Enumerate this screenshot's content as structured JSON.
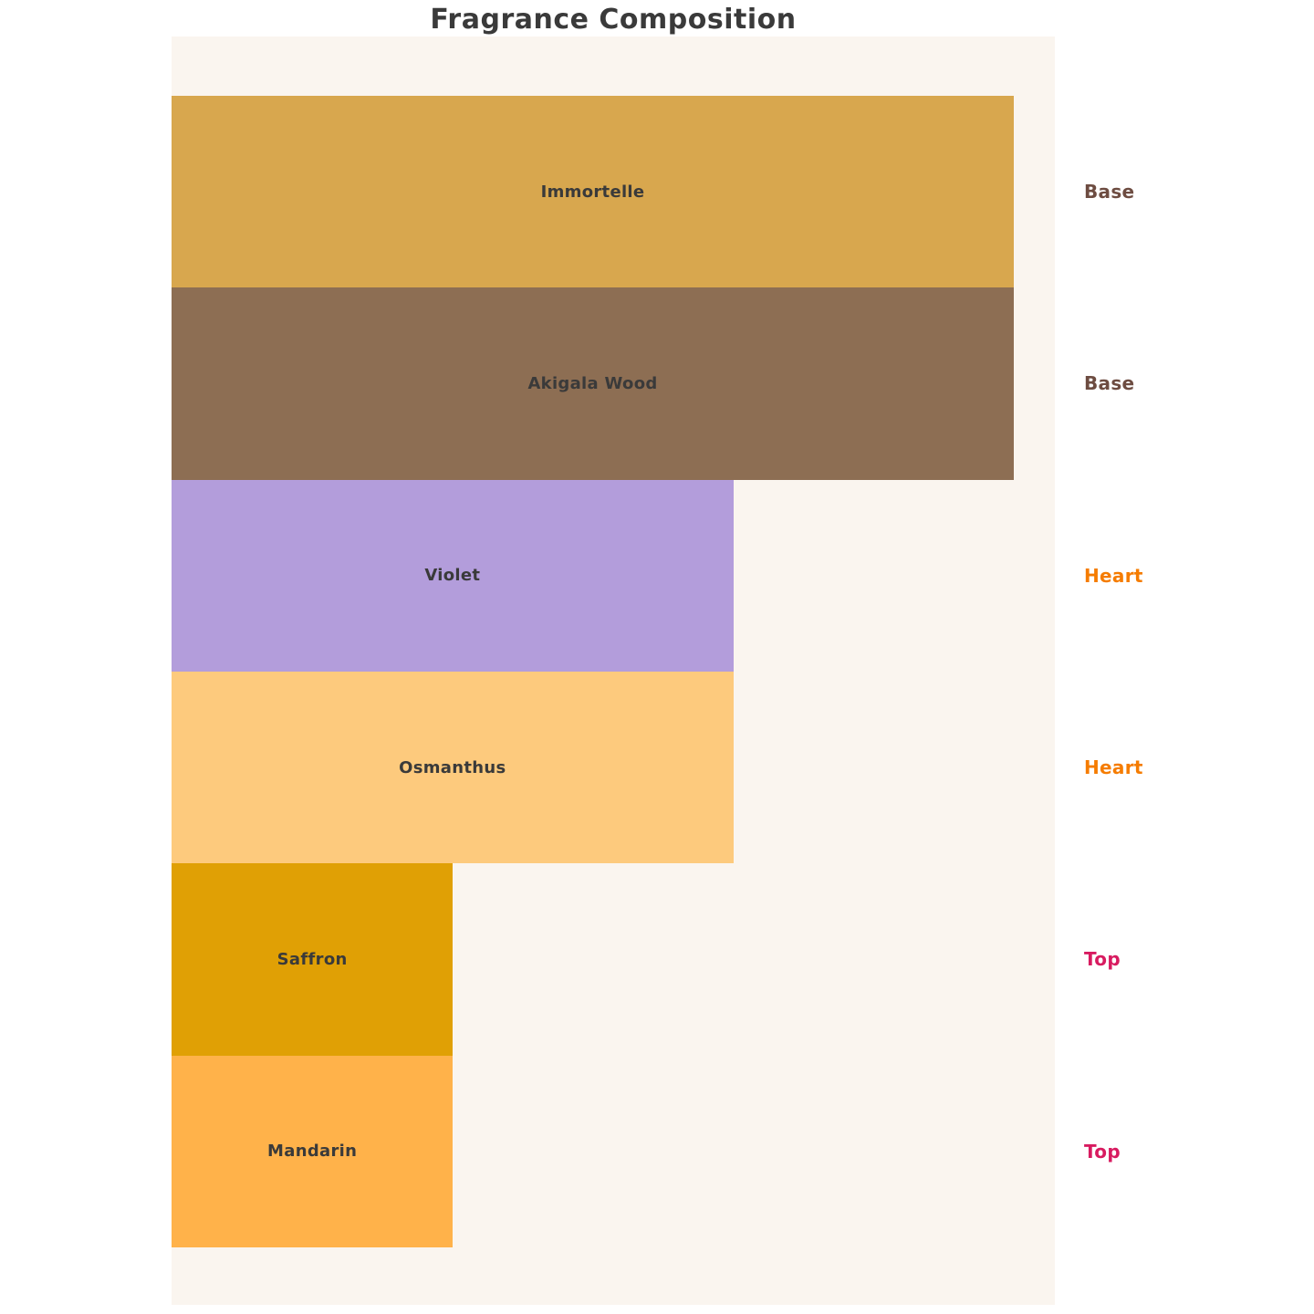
{
  "title": "Fragrance Composition",
  "panel_background": "#FAF5EF",
  "page_background": "#FFFFFF",
  "chart_data": {
    "type": "bar",
    "orientation": "horizontal",
    "title": "Fragrance Composition",
    "xlabel": "",
    "ylabel": "",
    "grid": false,
    "legend": "none",
    "value_axis_range_pct": [
      0,
      100
    ],
    "bars": [
      {
        "label": "Immortelle",
        "relative_width_pct": 100,
        "color": "#D8A74E",
        "note": "Base"
      },
      {
        "label": "Akigala Wood",
        "relative_width_pct": 100,
        "color": "#8D6E53",
        "note": "Base"
      },
      {
        "label": "Violet",
        "relative_width_pct": 66.7,
        "color": "#B39DDB",
        "note": "Heart"
      },
      {
        "label": "Osmanthus",
        "relative_width_pct": 66.7,
        "color": "#FDCA7D",
        "note": "Heart"
      },
      {
        "label": "Saffron",
        "relative_width_pct": 33.4,
        "color": "#E0A005",
        "note": "Top"
      },
      {
        "label": "Mandarin",
        "relative_width_pct": 33.4,
        "color": "#FFB24A",
        "note": "Top"
      }
    ],
    "note_colors": {
      "Base": "#6D4C41",
      "Heart": "#F57C00",
      "Top": "#D81B60"
    },
    "text_color": "#3A3A3A"
  }
}
